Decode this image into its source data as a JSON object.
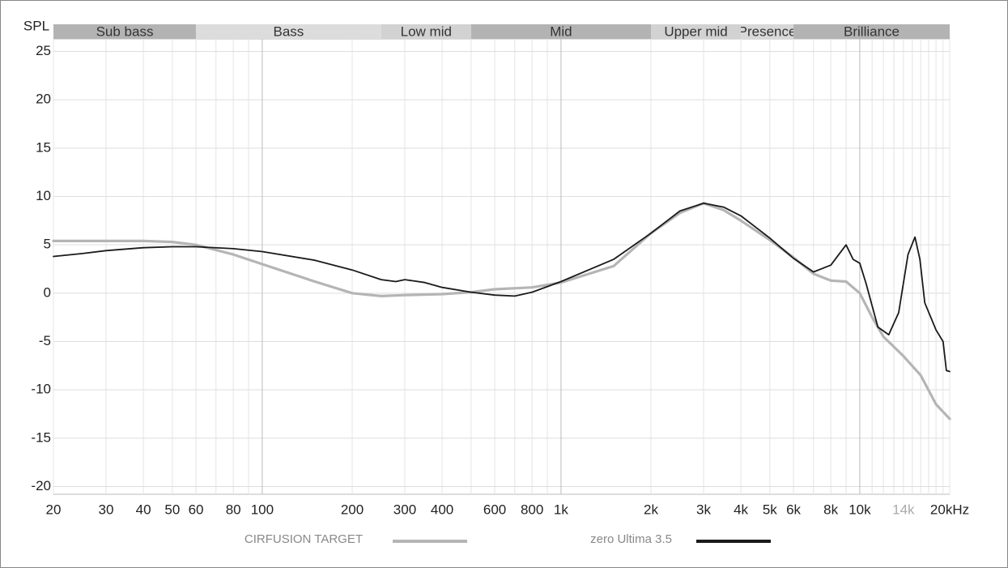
{
  "chart_data": {
    "type": "line",
    "ylabel": "SPL",
    "xscale": "log",
    "xlim": [
      20,
      20000
    ],
    "ylim": [
      -20.8,
      26.3
    ],
    "yticks": [
      -20,
      -15,
      -10,
      -5,
      0,
      5,
      10,
      15,
      20,
      25
    ],
    "xticks": [
      20,
      30,
      40,
      50,
      60,
      80,
      100,
      200,
      300,
      400,
      600,
      800,
      {
        "value": 1000,
        "label": "1k"
      },
      {
        "value": 2000,
        "label": "2k"
      },
      {
        "value": 3000,
        "label": "3k"
      },
      {
        "value": 4000,
        "label": "4k"
      },
      {
        "value": 5000,
        "label": "5k"
      },
      {
        "value": 6000,
        "label": "6k"
      },
      {
        "value": 8000,
        "label": "8k"
      },
      {
        "value": 10000,
        "label": "10k"
      },
      {
        "value": 14000,
        "label": "14k",
        "color": "#aaaaaa"
      },
      {
        "value": 20000,
        "label": "20kHz"
      }
    ],
    "xminor": [
      70,
      90,
      500,
      700,
      900,
      7000,
      9000,
      11000,
      12000,
      13000,
      15000,
      16000,
      17000,
      18000,
      19000
    ],
    "xmajor": [
      100,
      1000,
      10000
    ],
    "grid": true,
    "bands": [
      {
        "name": "Sub bass",
        "range": [
          20,
          60
        ],
        "color": "#b3b3b3"
      },
      {
        "name": "Bass",
        "range": [
          60,
          250
        ],
        "color": "#dcdcdc"
      },
      {
        "name": "Low mid",
        "range": [
          250,
          500
        ],
        "color": "#d2d2d2"
      },
      {
        "name": "Mid",
        "range": [
          500,
          2000
        ],
        "color": "#b3b3b3"
      },
      {
        "name": "Upper mid",
        "range": [
          2000,
          4000
        ],
        "color": "#d2d2d2"
      },
      {
        "name": "Presence",
        "range": [
          4000,
          6000
        ],
        "color": "#d8d8d8"
      },
      {
        "name": "Brilliance",
        "range": [
          6000,
          20000
        ],
        "color": "#b3b3b3"
      }
    ],
    "series": [
      {
        "name": "CIRFUSION TARGET",
        "color": "#b5b5b5",
        "width": 3.2,
        "x": [
          20,
          30,
          40,
          50,
          60,
          80,
          100,
          150,
          200,
          250,
          300,
          400,
          500,
          600,
          800,
          1000,
          1500,
          2000,
          2500,
          3000,
          3500,
          4000,
          5000,
          6000,
          7000,
          8000,
          9000,
          10000,
          11000,
          12000,
          14000,
          16000,
          18000,
          20000
        ],
        "values": [
          5.4,
          5.4,
          5.4,
          5.3,
          5.0,
          4.0,
          3.0,
          1.2,
          0.0,
          -0.3,
          -0.2,
          -0.1,
          0.1,
          0.4,
          0.6,
          1.1,
          2.8,
          6.2,
          8.3,
          9.3,
          8.6,
          7.5,
          5.5,
          3.7,
          2.0,
          1.3,
          1.2,
          0.0,
          -2.5,
          -4.5,
          -6.5,
          -8.5,
          -11.5,
          -13.0
        ]
      },
      {
        "name": "zero Ultima 3.5",
        "color": "#1a1a1a",
        "width": 1.8,
        "x": [
          20,
          25,
          30,
          40,
          50,
          60,
          80,
          100,
          150,
          200,
          250,
          280,
          300,
          350,
          400,
          500,
          600,
          700,
          800,
          1000,
          1500,
          2000,
          2500,
          3000,
          3500,
          4000,
          5000,
          6000,
          7000,
          8000,
          9000,
          9500,
          10000,
          10500,
          11500,
          12500,
          13500,
          14500,
          15300,
          15900,
          16500,
          18000,
          19000,
          19500,
          20000
        ],
        "values": [
          3.8,
          4.1,
          4.4,
          4.7,
          4.8,
          4.8,
          4.6,
          4.3,
          3.4,
          2.4,
          1.4,
          1.2,
          1.4,
          1.1,
          0.6,
          0.1,
          -0.2,
          -0.3,
          0.1,
          1.2,
          3.5,
          6.2,
          8.5,
          9.3,
          8.9,
          8.0,
          5.7,
          3.6,
          2.2,
          2.9,
          5.0,
          3.5,
          3.1,
          1.0,
          -3.5,
          -4.3,
          -2.0,
          4.0,
          5.8,
          3.5,
          -1.0,
          -3.8,
          -5.0,
          -8.0,
          -8.1
        ]
      }
    ]
  }
}
